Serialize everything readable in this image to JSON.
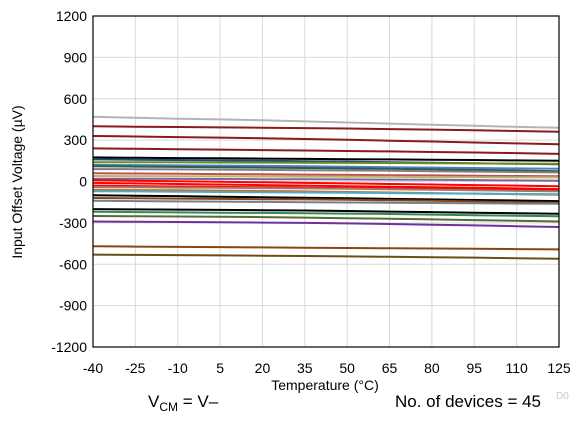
{
  "chart_data": {
    "type": "line",
    "xlabel": "Temperature (°C)",
    "ylabel": "Input Offset Voltage (µV)",
    "xlim": [
      -40,
      125
    ],
    "ylim": [
      -1200,
      1200
    ],
    "x_ticks": [
      "-40",
      "-25",
      "-10",
      "5",
      "20",
      "35",
      "50",
      "65",
      "80",
      "95",
      "110",
      "125"
    ],
    "y_ticks": [
      "1200",
      "900",
      "600",
      "300",
      "0",
      "-300",
      "-600",
      "-900",
      "-1200"
    ],
    "grid": true,
    "x": [
      -40,
      -25,
      -10,
      5,
      20,
      35,
      50,
      65,
      80,
      95,
      110,
      125
    ],
    "series": [
      {
        "color": "#b4b4b4",
        "values": [
          470,
          462,
          455,
          450,
          444,
          436,
          428,
          420,
          412,
          404,
          396,
          390
        ]
      },
      {
        "color": "#8b1a1a",
        "values": [
          400,
          397,
          395,
          392,
          390,
          387,
          384,
          380,
          376,
          372,
          366,
          360
        ]
      },
      {
        "color": "#8b1a1a",
        "values": [
          330,
          326,
          322,
          318,
          313,
          308,
          302,
          296,
          290,
          283,
          276,
          270
        ]
      },
      {
        "color": "#8b1a1a",
        "values": [
          240,
          237,
          234,
          231,
          228,
          225,
          221,
          218,
          214,
          210,
          206,
          200
        ]
      },
      {
        "color": "#000000",
        "values": [
          175,
          172,
          170,
          168,
          166,
          164,
          162,
          160,
          158,
          156,
          153,
          150
        ]
      },
      {
        "color": "#1f4e79",
        "values": [
          160,
          158,
          156,
          153,
          150,
          147,
          144,
          140,
          136,
          132,
          128,
          125
        ]
      },
      {
        "color": "#6b8e23",
        "values": [
          140,
          140,
          139,
          138,
          137,
          136,
          135,
          134,
          132,
          131,
          130,
          128
        ]
      },
      {
        "color": "#4f81bd",
        "values": [
          120,
          119,
          117,
          115,
          113,
          110,
          107,
          104,
          101,
          98,
          95,
          92
        ]
      },
      {
        "color": "#2f5d50",
        "values": [
          110,
          108,
          106,
          104,
          101,
          98,
          95,
          92,
          88,
          84,
          80,
          75
        ]
      },
      {
        "color": "#7f7f7f",
        "values": [
          90,
          89,
          88,
          86,
          84,
          82,
          80,
          78,
          75,
          72,
          69,
          66
        ]
      },
      {
        "color": "#c0504d",
        "values": [
          60,
          58,
          56,
          54,
          52,
          50,
          48,
          46,
          44,
          42,
          40,
          38
        ]
      },
      {
        "color": "#bdb76b",
        "values": [
          40,
          39,
          38,
          37,
          36,
          35,
          34,
          33,
          32,
          31,
          30,
          30
        ]
      },
      {
        "color": "#8064a2",
        "values": [
          20,
          20,
          19,
          18,
          17,
          16,
          15,
          14,
          12,
          10,
          8,
          6
        ]
      },
      {
        "color": "#ff0000",
        "values": [
          10,
          6,
          2,
          -2,
          -6,
          -10,
          -14,
          -18,
          -22,
          -26,
          -30,
          -34
        ]
      },
      {
        "color": "#ff0000",
        "values": [
          -10,
          -14,
          -18,
          -22,
          -26,
          -30,
          -34,
          -38,
          -42,
          -46,
          -50,
          -55
        ]
      },
      {
        "color": "#ff0000",
        "values": [
          -30,
          -33,
          -36,
          -39,
          -42,
          -45,
          -48,
          -51,
          -54,
          -57,
          -60,
          -62
        ]
      },
      {
        "color": "#9e7b6b",
        "values": [
          -40,
          -42,
          -44,
          -46,
          -48,
          -50,
          -53,
          -56,
          -60,
          -64,
          -68,
          -72
        ]
      },
      {
        "color": "#d2691e",
        "values": [
          -60,
          -62,
          -64,
          -66,
          -69,
          -72,
          -76,
          -80,
          -84,
          -88,
          -92,
          -96
        ]
      },
      {
        "color": "#4bacc6",
        "values": [
          -70,
          -72,
          -74,
          -76,
          -78,
          -80,
          -82,
          -84,
          -86,
          -88,
          -90,
          -92
        ]
      },
      {
        "color": "#000000",
        "values": [
          -100,
          -103,
          -106,
          -110,
          -114,
          -118,
          -122,
          -126,
          -130,
          -134,
          -138,
          -142
        ]
      },
      {
        "color": "#8b4513",
        "values": [
          -120,
          -122,
          -124,
          -126,
          -128,
          -130,
          -133,
          -136,
          -140,
          -145,
          -150,
          -155
        ]
      },
      {
        "color": "#708090",
        "values": [
          -140,
          -142,
          -144,
          -146,
          -148,
          -150,
          -152,
          -154,
          -156,
          -158,
          -160,
          -162
        ]
      },
      {
        "color": "#000000",
        "values": [
          -200,
          -202,
          -204,
          -206,
          -208,
          -210,
          -214,
          -218,
          -222,
          -226,
          -230,
          -234
        ]
      },
      {
        "color": "#2e8b57",
        "values": [
          -220,
          -222,
          -224,
          -226,
          -228,
          -230,
          -233,
          -236,
          -240,
          -244,
          -248,
          -252
        ]
      },
      {
        "color": "#556b2f",
        "values": [
          -250,
          -252,
          -254,
          -256,
          -258,
          -262,
          -266,
          -270,
          -275,
          -280,
          -285,
          -290
        ]
      },
      {
        "color": "#7030a0",
        "values": [
          -290,
          -292,
          -294,
          -296,
          -298,
          -300,
          -304,
          -308,
          -313,
          -318,
          -324,
          -330
        ]
      },
      {
        "color": "#8b4513",
        "values": [
          -470,
          -472,
          -474,
          -476,
          -478,
          -480,
          -482,
          -484,
          -486,
          -488,
          -490,
          -492
        ]
      },
      {
        "color": "#6b4e16",
        "values": [
          -530,
          -532,
          -534,
          -536,
          -538,
          -540,
          -543,
          -546,
          -549,
          -552,
          -556,
          -560
        ]
      }
    ],
    "caption_left": {
      "main": "V",
      "sub": "CM",
      "rest": " = V–"
    },
    "caption_right": "No. of devices = 45",
    "figure_code": "D0"
  }
}
